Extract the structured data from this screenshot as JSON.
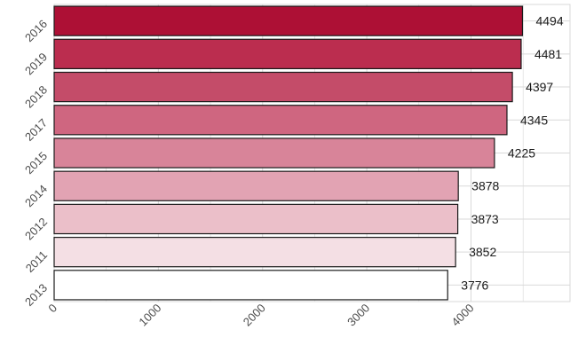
{
  "chart_data": {
    "type": "bar",
    "orientation": "horizontal",
    "title": "",
    "xlabel": "",
    "ylabel": "",
    "categories": [
      "2016",
      "2019",
      "2018",
      "2017",
      "2015",
      "2014",
      "2012",
      "2011",
      "2013"
    ],
    "values": [
      4494,
      4481,
      4397,
      4345,
      4225,
      3878,
      3873,
      3852,
      3776
    ],
    "xlim": [
      0,
      4950
    ],
    "xticks": [
      0,
      1000,
      2000,
      3000,
      4000
    ],
    "grid": true,
    "legend": "none",
    "colors": [
      "#ad1035",
      "#bb2d4f",
      "#c44c69",
      "#cf6680",
      "#d88499",
      "#e2a3b3",
      "#ebbfc9",
      "#f4dfe4",
      "#ffffff"
    ],
    "bar_outline": "#1a1a1a",
    "grid_color": "#d9d9d9"
  }
}
